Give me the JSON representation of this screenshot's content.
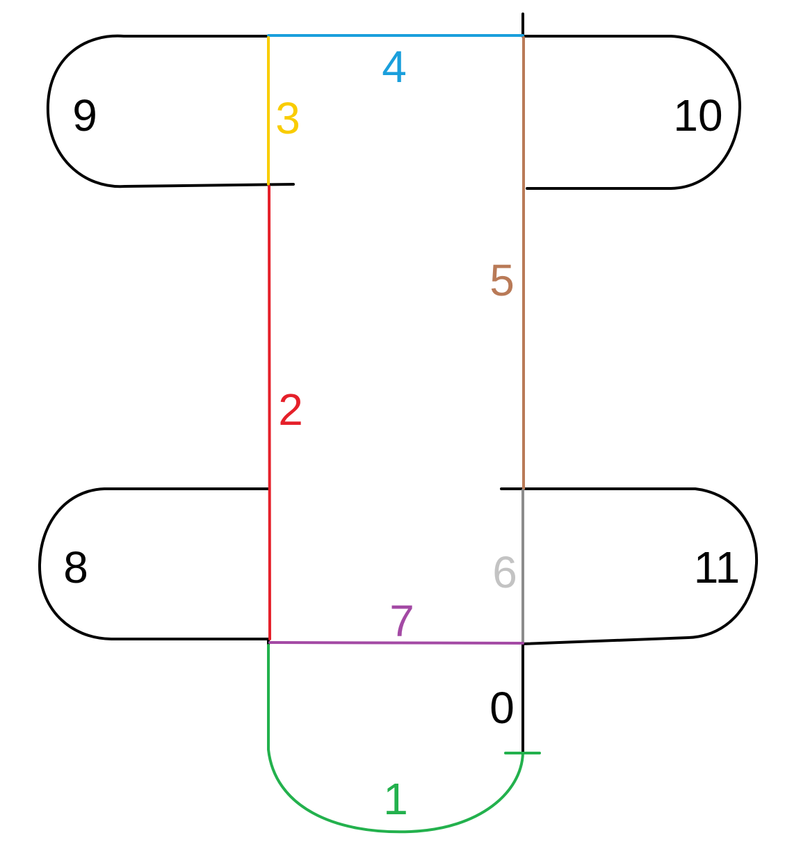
{
  "colors": {
    "black": "#000000",
    "blue": "#1a9fdc",
    "yellow": "#f9cc00",
    "red": "#e5202a",
    "brown": "#b97a57",
    "gray": "#8c8c8c",
    "gray_label": "#c3c3c3",
    "purple": "#a349a4",
    "green": "#23b14d"
  },
  "segments": {
    "s0": "0",
    "s1": "1",
    "s2": "2",
    "s3": "3",
    "s4": "4",
    "s5": "5",
    "s6": "6",
    "s7": "7"
  },
  "loops": {
    "l8": "8",
    "l9": "9",
    "l10": "10",
    "l11": "11"
  }
}
